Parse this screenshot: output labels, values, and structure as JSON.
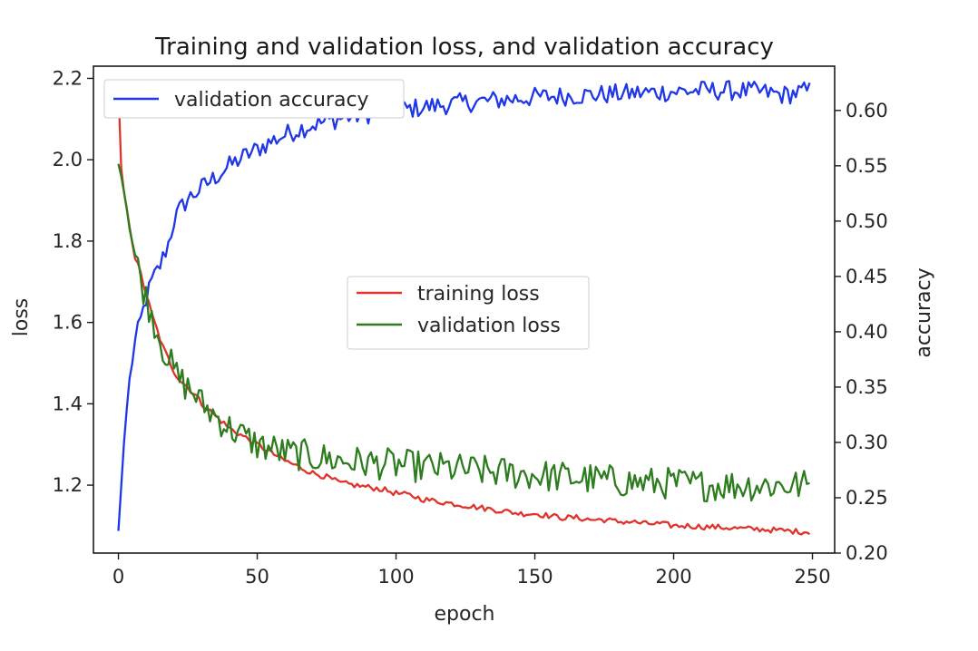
{
  "chart_data": {
    "type": "line",
    "title": "Training and validation loss, and validation accuracy",
    "xlabel": "epoch",
    "ylabel_left": "loss",
    "ylabel_right": "accuracy",
    "xlim": [
      -9,
      258
    ],
    "ylim_left": [
      1.033,
      2.23
    ],
    "ylim_right": [
      0.2,
      0.64
    ],
    "x_ticks": [
      0,
      50,
      100,
      150,
      200,
      250
    ],
    "y_left_ticks": [
      1.2,
      1.4,
      1.6,
      1.8,
      2.0,
      2.2
    ],
    "y_right_ticks": [
      0.2,
      0.25,
      0.3,
      0.35,
      0.4,
      0.45,
      0.5,
      0.55,
      0.6
    ],
    "legend_left": "top-left",
    "legend_center": "center",
    "grid": false,
    "series": [
      {
        "name": "training loss",
        "axis": "left",
        "color": "#e0332b",
        "points": [
          [
            0,
            2.18
          ],
          [
            1,
            1.98
          ],
          [
            2,
            1.92
          ],
          [
            3,
            1.88
          ],
          [
            4,
            1.84
          ],
          [
            5,
            1.8
          ],
          [
            6,
            1.76
          ],
          [
            8,
            1.72
          ],
          [
            10,
            1.67
          ],
          [
            12,
            1.62
          ],
          [
            14,
            1.58
          ],
          [
            16,
            1.54
          ],
          [
            18,
            1.51
          ],
          [
            20,
            1.48
          ],
          [
            22,
            1.46
          ],
          [
            25,
            1.44
          ],
          [
            28,
            1.42
          ],
          [
            30,
            1.4
          ],
          [
            35,
            1.37
          ],
          [
            40,
            1.34
          ],
          [
            45,
            1.32
          ],
          [
            50,
            1.3
          ],
          [
            55,
            1.28
          ],
          [
            60,
            1.26
          ],
          [
            65,
            1.245
          ],
          [
            70,
            1.23
          ],
          [
            75,
            1.22
          ],
          [
            80,
            1.205
          ],
          [
            85,
            1.2
          ],
          [
            90,
            1.195
          ],
          [
            95,
            1.19
          ],
          [
            100,
            1.18
          ],
          [
            105,
            1.175
          ],
          [
            110,
            1.165
          ],
          [
            115,
            1.16
          ],
          [
            120,
            1.155
          ],
          [
            125,
            1.15
          ],
          [
            130,
            1.145
          ],
          [
            135,
            1.14
          ],
          [
            140,
            1.135
          ],
          [
            145,
            1.13
          ],
          [
            150,
            1.13
          ],
          [
            155,
            1.125
          ],
          [
            160,
            1.12
          ],
          [
            165,
            1.12
          ],
          [
            170,
            1.115
          ],
          [
            175,
            1.115
          ],
          [
            180,
            1.11
          ],
          [
            185,
            1.11
          ],
          [
            190,
            1.105
          ],
          [
            195,
            1.105
          ],
          [
            200,
            1.1
          ],
          [
            205,
            1.1
          ],
          [
            210,
            1.098
          ],
          [
            215,
            1.097
          ],
          [
            220,
            1.095
          ],
          [
            225,
            1.093
          ],
          [
            230,
            1.092
          ],
          [
            235,
            1.09
          ],
          [
            240,
            1.088
          ],
          [
            245,
            1.086
          ],
          [
            249,
            1.085
          ]
        ],
        "noise": 0.007
      },
      {
        "name": "validation loss",
        "axis": "left",
        "color": "#2d7d1f",
        "points": [
          [
            0,
            1.99
          ],
          [
            1,
            1.96
          ],
          [
            2,
            1.92
          ],
          [
            3,
            1.88
          ],
          [
            4,
            1.84
          ],
          [
            5,
            1.8
          ],
          [
            6,
            1.76
          ],
          [
            8,
            1.71
          ],
          [
            10,
            1.66
          ],
          [
            12,
            1.62
          ],
          [
            14,
            1.58
          ],
          [
            16,
            1.54
          ],
          [
            18,
            1.51
          ],
          [
            20,
            1.48
          ],
          [
            22,
            1.46
          ],
          [
            25,
            1.44
          ],
          [
            28,
            1.42
          ],
          [
            30,
            1.4
          ],
          [
            35,
            1.37
          ],
          [
            40,
            1.34
          ],
          [
            45,
            1.32
          ],
          [
            50,
            1.3
          ],
          [
            55,
            1.29
          ],
          [
            60,
            1.28
          ],
          [
            65,
            1.275
          ],
          [
            70,
            1.27
          ],
          [
            75,
            1.265
          ],
          [
            80,
            1.26
          ],
          [
            90,
            1.255
          ],
          [
            100,
            1.25
          ],
          [
            110,
            1.245
          ],
          [
            120,
            1.24
          ],
          [
            130,
            1.235
          ],
          [
            140,
            1.23
          ],
          [
            150,
            1.225
          ],
          [
            160,
            1.22
          ],
          [
            170,
            1.215
          ],
          [
            180,
            1.21
          ],
          [
            190,
            1.205
          ],
          [
            200,
            1.205
          ],
          [
            210,
            1.2
          ],
          [
            220,
            1.2
          ],
          [
            230,
            1.2
          ],
          [
            240,
            1.2
          ],
          [
            249,
            1.2
          ]
        ],
        "noise": 0.04
      },
      {
        "name": "validation accuracy",
        "axis": "right",
        "color": "#1f37e8",
        "points": [
          [
            0,
            0.22
          ],
          [
            1,
            0.26
          ],
          [
            2,
            0.3
          ],
          [
            3,
            0.33
          ],
          [
            4,
            0.355
          ],
          [
            5,
            0.375
          ],
          [
            6,
            0.39
          ],
          [
            8,
            0.41
          ],
          [
            10,
            0.43
          ],
          [
            12,
            0.445
          ],
          [
            15,
            0.46
          ],
          [
            18,
            0.48
          ],
          [
            20,
            0.5
          ],
          [
            22,
            0.51
          ],
          [
            25,
            0.52
          ],
          [
            30,
            0.53
          ],
          [
            35,
            0.54
          ],
          [
            40,
            0.55
          ],
          [
            45,
            0.558
          ],
          [
            50,
            0.565
          ],
          [
            55,
            0.572
          ],
          [
            60,
            0.578
          ],
          [
            65,
            0.583
          ],
          [
            70,
            0.587
          ],
          [
            75,
            0.59
          ],
          [
            80,
            0.593
          ],
          [
            90,
            0.597
          ],
          [
            100,
            0.6
          ],
          [
            110,
            0.603
          ],
          [
            120,
            0.606
          ],
          [
            130,
            0.608
          ],
          [
            140,
            0.61
          ],
          [
            150,
            0.612
          ],
          [
            160,
            0.613
          ],
          [
            170,
            0.614
          ],
          [
            180,
            0.615
          ],
          [
            190,
            0.616
          ],
          [
            200,
            0.617
          ],
          [
            210,
            0.618
          ],
          [
            220,
            0.618
          ],
          [
            230,
            0.617
          ],
          [
            240,
            0.614
          ],
          [
            249,
            0.618
          ]
        ],
        "noise": 0.009
      }
    ]
  }
}
